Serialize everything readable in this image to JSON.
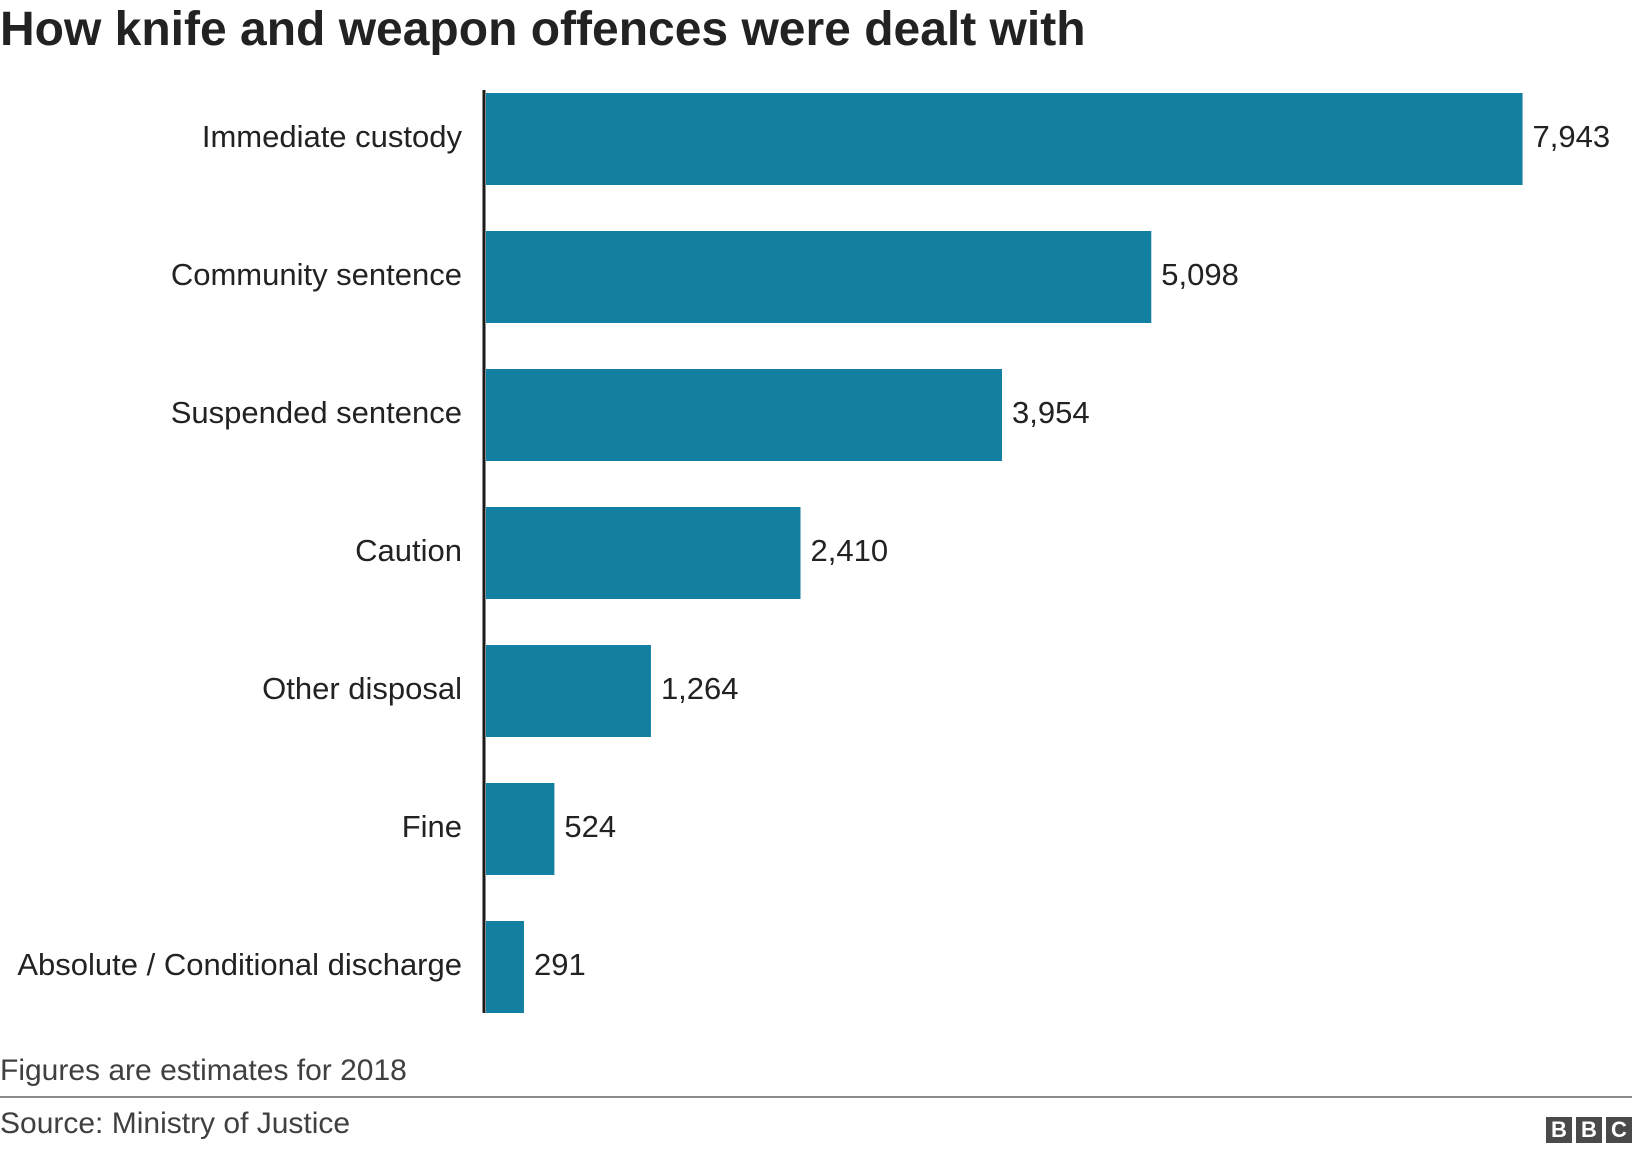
{
  "chart_data": {
    "type": "bar",
    "orientation": "horizontal",
    "title": "How knife and weapon offences were dealt with",
    "categories": [
      "Immediate custody",
      "Community sentence",
      "Suspended sentence",
      "Caution",
      "Other disposal",
      "Fine",
      "Absolute / Conditional discharge"
    ],
    "values": [
      7943,
      5098,
      3954,
      2410,
      1264,
      524,
      291
    ],
    "value_labels": [
      "7,943",
      "5,098",
      "3,954",
      "2,410",
      "1,264",
      "524",
      "291"
    ],
    "xlim": [
      0,
      8000
    ],
    "grid": false,
    "legend": "none",
    "bar_color": "#1380a1"
  },
  "footnote": "Figures are estimates for 2018",
  "source": "Source: Ministry of Justice",
  "branding": {
    "logo_letters": [
      "B",
      "B",
      "C"
    ]
  }
}
